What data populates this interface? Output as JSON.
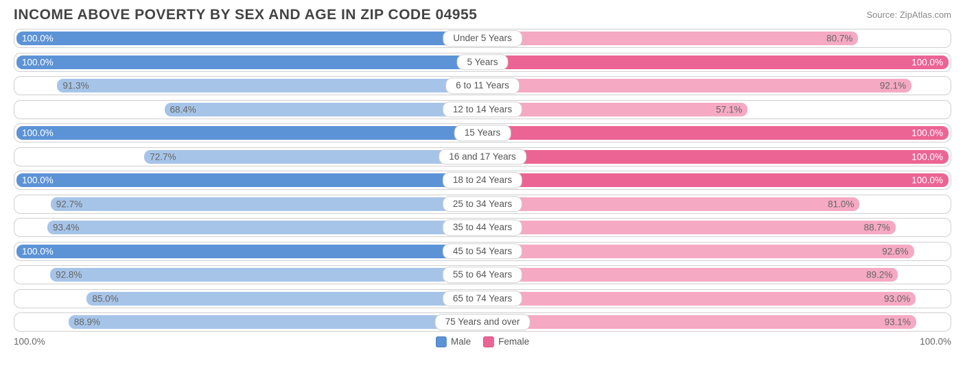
{
  "title": "INCOME ABOVE POVERTY BY SEX AND AGE IN ZIP CODE 04955",
  "source": "Source: ZipAtlas.com",
  "axis": {
    "left": "100.0%",
    "right": "100.0%"
  },
  "legend": {
    "male": {
      "label": "Male",
      "color": "#5c93d6"
    },
    "female": {
      "label": "Female",
      "color": "#ec6493"
    }
  },
  "colors": {
    "male_full": "#5c93d6",
    "male_light": "#a6c4e8",
    "female_full": "#ec6493",
    "female_light": "#f5a9c2",
    "track_border": "#cfcfcf",
    "background": "#ffffff",
    "text_dark": "#666"
  },
  "chart": {
    "type": "diverging-bar",
    "rows": [
      {
        "category": "Under 5 Years",
        "male": 100.0,
        "female": 80.7,
        "male_label": "100.0%",
        "female_label": "80.7%"
      },
      {
        "category": "5 Years",
        "male": 100.0,
        "female": 100.0,
        "male_label": "100.0%",
        "female_label": "100.0%"
      },
      {
        "category": "6 to 11 Years",
        "male": 91.3,
        "female": 92.1,
        "male_label": "91.3%",
        "female_label": "92.1%"
      },
      {
        "category": "12 to 14 Years",
        "male": 68.4,
        "female": 57.1,
        "male_label": "68.4%",
        "female_label": "57.1%"
      },
      {
        "category": "15 Years",
        "male": 100.0,
        "female": 100.0,
        "male_label": "100.0%",
        "female_label": "100.0%"
      },
      {
        "category": "16 and 17 Years",
        "male": 72.7,
        "female": 100.0,
        "male_label": "72.7%",
        "female_label": "100.0%"
      },
      {
        "category": "18 to 24 Years",
        "male": 100.0,
        "female": 100.0,
        "male_label": "100.0%",
        "female_label": "100.0%"
      },
      {
        "category": "25 to 34 Years",
        "male": 92.7,
        "female": 81.0,
        "male_label": "92.7%",
        "female_label": "81.0%"
      },
      {
        "category": "35 to 44 Years",
        "male": 93.4,
        "female": 88.7,
        "male_label": "93.4%",
        "female_label": "88.7%"
      },
      {
        "category": "45 to 54 Years",
        "male": 100.0,
        "female": 92.6,
        "male_label": "100.0%",
        "female_label": "92.6%"
      },
      {
        "category": "55 to 64 Years",
        "male": 92.8,
        "female": 89.2,
        "male_label": "92.8%",
        "female_label": "89.2%"
      },
      {
        "category": "65 to 74 Years",
        "male": 85.0,
        "female": 93.0,
        "male_label": "85.0%",
        "female_label": "93.0%"
      },
      {
        "category": "75 Years and over",
        "male": 88.9,
        "female": 93.1,
        "male_label": "88.9%",
        "female_label": "93.1%"
      }
    ]
  }
}
